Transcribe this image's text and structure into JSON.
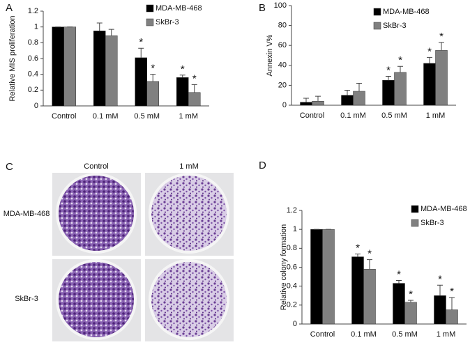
{
  "chart_data": [
    {
      "type": "bar",
      "panel_label": "A",
      "y_label": "Relative MIS proliferation",
      "categories": [
        "Control",
        "0.1 mM",
        "0.5 mM",
        "1 mM"
      ],
      "series": [
        {
          "name": "MDA-MB-468",
          "color": "#000000",
          "values": [
            1,
            0.95,
            0.61,
            0.36
          ],
          "errors": [
            0,
            0.1,
            0.12,
            0.03
          ],
          "significance": [
            null,
            null,
            "*",
            "*"
          ]
        },
        {
          "name": "SkBr-3",
          "color": "#808080",
          "values": [
            1,
            0.89,
            0.31,
            0.17
          ],
          "errors": [
            0,
            0.08,
            0.09,
            0.1
          ],
          "significance": [
            null,
            null,
            "*",
            "*"
          ]
        }
      ],
      "ylim": [
        0,
        1.2
      ],
      "yticks": [
        0,
        0.2,
        0.4,
        0.6,
        0.8,
        1,
        1.2
      ],
      "legend": "upper right"
    },
    {
      "type": "bar",
      "panel_label": "B",
      "y_label": "Annexin V%",
      "categories": [
        "Control",
        "0.1 mM",
        "0.5 mM",
        "1 mM"
      ],
      "series": [
        {
          "name": "MDA-MB-468",
          "color": "#000000",
          "values": [
            3,
            10,
            25,
            42
          ],
          "errors": [
            4,
            5,
            4,
            6
          ],
          "significance": [
            null,
            null,
            "*",
            "*"
          ]
        },
        {
          "name": "SkBr-3",
          "color": "#808080",
          "values": [
            4,
            14,
            33,
            55
          ],
          "errors": [
            5,
            8,
            6,
            8
          ],
          "significance": [
            null,
            null,
            "*",
            "*"
          ]
        }
      ],
      "ylim": [
        0,
        100
      ],
      "yticks": [
        0,
        20,
        40,
        60,
        80,
        100
      ],
      "legend": "upper right"
    },
    {
      "type": "bar",
      "panel_label": "D",
      "y_label": "Relative colony formation",
      "categories": [
        "Control",
        "0.1 mM",
        "0.5 mM",
        "1 mM"
      ],
      "series": [
        {
          "name": "MDA-MB-468",
          "color": "#000000",
          "values": [
            1,
            0.71,
            0.43,
            0.3
          ],
          "errors": [
            0,
            0.03,
            0.03,
            0.11
          ],
          "significance": [
            null,
            "*",
            "*",
            "*"
          ]
        },
        {
          "name": "SkBr-3",
          "color": "#808080",
          "values": [
            1,
            0.58,
            0.23,
            0.15
          ],
          "errors": [
            0,
            0.1,
            0.02,
            0.13
          ],
          "significance": [
            null,
            "*",
            "*",
            "*"
          ]
        }
      ],
      "ylim": [
        0,
        1.2
      ],
      "yticks": [
        0,
        0.2,
        0.4,
        0.6,
        0.8,
        1,
        1.2
      ],
      "legend": "upper right"
    }
  ],
  "image_panel": {
    "panel_label": "C",
    "columns": [
      "Control",
      "1 mM"
    ],
    "rows": [
      "MDA-MB-468",
      "SkBr-3"
    ]
  }
}
